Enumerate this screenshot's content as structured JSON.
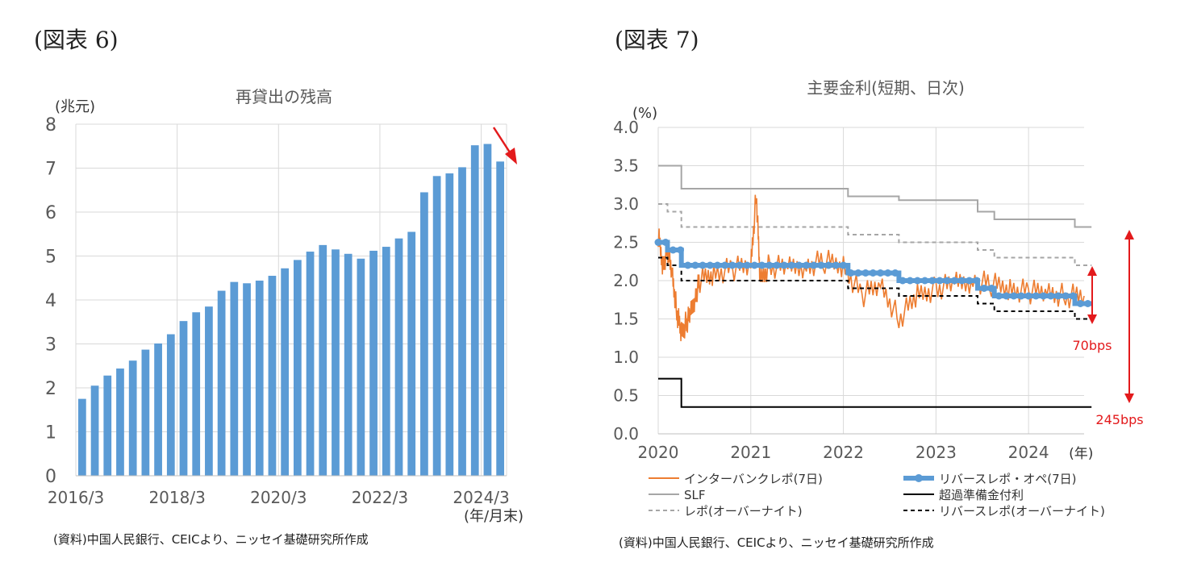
{
  "figures": [
    {
      "label": "(図表 6)",
      "source": "(資料)中国人民銀行、CEICより、ニッセイ基礎研究所作成",
      "chart_data": {
        "type": "bar",
        "title": "再貸出の残高",
        "ylabel": "(兆元)",
        "xlabel": "(年/月末)",
        "ylim": [
          0,
          8
        ],
        "yticks": [
          "0",
          "1",
          "2",
          "3",
          "4",
          "5",
          "6",
          "7",
          "8"
        ],
        "xticks": [
          "2016/3",
          "2018/3",
          "2020/3",
          "2022/3",
          "2024/3"
        ],
        "xtick_index": [
          0,
          8,
          16,
          24,
          32
        ],
        "bar_color": "#5B9BD5",
        "values": [
          1.75,
          2.05,
          2.28,
          2.44,
          2.62,
          2.87,
          3.01,
          3.22,
          3.52,
          3.72,
          3.85,
          4.21,
          4.41,
          4.38,
          4.44,
          4.55,
          4.72,
          4.91,
          5.1,
          5.25,
          5.15,
          5.05,
          4.94,
          5.12,
          5.21,
          5.4,
          5.55,
          6.45,
          6.82,
          6.88,
          7.02,
          7.52,
          7.55,
          7.15
        ],
        "annotation": "downward-arrow"
      }
    },
    {
      "label": "(図表 7)",
      "source": "(資料)中国人民銀行、CEICより、ニッセイ基礎研究所作成",
      "chart_data": {
        "type": "line",
        "title": "主要金利(短期、日次)",
        "ylabel": "(%)",
        "xunit": "(年)",
        "ylim": [
          0,
          4
        ],
        "yticks": [
          "0.0",
          "0.5",
          "1.0",
          "1.5",
          "2.0",
          "2.5",
          "3.0",
          "3.5",
          "4.0"
        ],
        "xlim": [
          2020.0,
          2024.6
        ],
        "xticks": [
          "2020",
          "2021",
          "2022",
          "2023",
          "2024"
        ],
        "series": [
          {
            "name": "SLF",
            "color": "#A6A6A6",
            "style": "solid",
            "x": [
              2020.0,
              2020.25,
              2020.25,
              2022.05,
              2022.05,
              2022.6,
              2022.6,
              2023.45,
              2023.45,
              2023.63,
              2023.63,
              2024.5,
              2024.5,
              2024.68
            ],
            "y": [
              3.5,
              3.5,
              3.2,
              3.2,
              3.1,
              3.1,
              3.05,
              3.05,
              2.9,
              2.9,
              2.8,
              2.8,
              2.7,
              2.7
            ]
          },
          {
            "name": "レポ(オーバーナイト)",
            "color": "#A6A6A6",
            "style": "dashed",
            "x": [
              2020.0,
              2020.1,
              2020.1,
              2020.25,
              2020.25,
              2022.05,
              2022.05,
              2022.6,
              2022.6,
              2023.45,
              2023.45,
              2023.63,
              2023.63,
              2024.5,
              2024.5,
              2024.68
            ],
            "y": [
              3.0,
              3.0,
              2.9,
              2.9,
              2.7,
              2.7,
              2.6,
              2.6,
              2.5,
              2.5,
              2.4,
              2.4,
              2.3,
              2.3,
              2.2,
              2.2
            ]
          },
          {
            "name": "リバースレポ(オーバーナイト)",
            "color": "#000000",
            "style": "dashed",
            "x": [
              2020.0,
              2020.1,
              2020.1,
              2020.25,
              2020.25,
              2022.05,
              2022.05,
              2022.6,
              2022.6,
              2023.45,
              2023.45,
              2023.63,
              2023.63,
              2024.5,
              2024.5,
              2024.68
            ],
            "y": [
              2.3,
              2.3,
              2.2,
              2.2,
              2.0,
              2.0,
              1.9,
              1.9,
              1.8,
              1.8,
              1.7,
              1.7,
              1.6,
              1.6,
              1.5,
              1.5
            ]
          },
          {
            "name": "超過準備金付利",
            "color": "#000000",
            "style": "solid",
            "x": [
              2020.0,
              2020.25,
              2020.25,
              2024.68
            ],
            "y": [
              0.72,
              0.72,
              0.35,
              0.35
            ]
          },
          {
            "name": "リバースレポ・オペ(7日)",
            "color": "#5B9BD5",
            "style": "thick",
            "x": [
              2020.0,
              2020.1,
              2020.1,
              2020.25,
              2020.25,
              2022.05,
              2022.05,
              2022.6,
              2022.6,
              2023.45,
              2023.45,
              2023.63,
              2023.63,
              2024.5,
              2024.5,
              2024.68
            ],
            "y": [
              2.5,
              2.5,
              2.4,
              2.4,
              2.2,
              2.2,
              2.1,
              2.1,
              2.0,
              2.0,
              1.9,
              1.9,
              1.8,
              1.8,
              1.7,
              1.7
            ]
          },
          {
            "name": "インターバンクレポ(7日)",
            "color": "#ED7D31",
            "style": "noisy",
            "x": [
              2020.0,
              2020.05,
              2020.1,
              2020.15,
              2020.2,
              2020.25,
              2020.3,
              2020.35,
              2020.4,
              2020.45,
              2020.6,
              2020.8,
              2021.0,
              2021.06,
              2021.1,
              2021.2,
              2021.4,
              2021.6,
              2021.8,
              2022.0,
              2022.2,
              2022.4,
              2022.6,
              2022.8,
              2023.0,
              2023.2,
              2023.4,
              2023.6,
              2023.8,
              2024.0,
              2024.2,
              2024.4,
              2024.6
            ],
            "y": [
              2.6,
              2.2,
              2.4,
              2.1,
              1.6,
              1.3,
              1.45,
              1.55,
              1.8,
              2.0,
              2.1,
              2.15,
              2.2,
              3.15,
              2.0,
              2.2,
              2.15,
              2.2,
              2.25,
              2.2,
              1.8,
              1.95,
              1.5,
              1.8,
              1.9,
              1.95,
              2.0,
              1.95,
              1.9,
              1.85,
              1.85,
              1.8,
              1.8
            ]
          }
        ],
        "legend": [
          [
            "インターバンクレポ(7日)",
            "リバースレポ・オペ(7日)"
          ],
          [
            "SLF",
            "超過準備金付利"
          ],
          [
            "レポ(オーバーナイト)",
            "リバースレポ(オーバーナイト)"
          ]
        ],
        "annotations": [
          "70bps",
          "245bps"
        ],
        "annotation_color": "#E31A1C"
      }
    }
  ]
}
